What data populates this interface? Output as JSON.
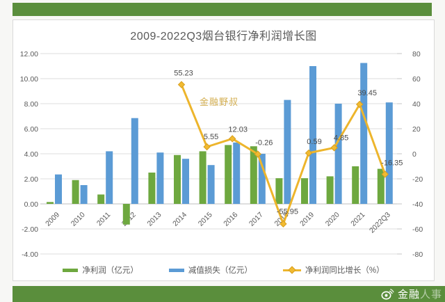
{
  "banners": {
    "color": "#5a8e3c",
    "bottom_watermark": {
      "brand_part1": "金融",
      "brand_part2": "人事"
    }
  },
  "card": {
    "inner_watermark": "金融野叔"
  },
  "chart_data": {
    "type": "combo-bar-line",
    "title": "2009-2022Q3烟台银行净利润增长图",
    "categories": [
      "2009",
      "2010",
      "2011",
      "2012",
      "2013",
      "2014",
      "2015",
      "2016",
      "2017",
      "2018",
      "2019",
      "2020",
      "2021",
      "2022Q3"
    ],
    "series": [
      {
        "name": "净利润（亿元）",
        "type": "bar",
        "axis": "left",
        "color": "#6ea83f",
        "values": [
          0.15,
          1.9,
          0.75,
          -1.65,
          2.5,
          3.9,
          4.2,
          4.7,
          4.6,
          2.05,
          2.05,
          2.2,
          3.0,
          2.8
        ]
      },
      {
        "name": "减值损失（亿元）",
        "type": "bar",
        "axis": "left",
        "color": "#5b9bd5",
        "values": [
          2.35,
          1.5,
          4.2,
          6.85,
          4.1,
          3.6,
          3.1,
          4.9,
          4.0,
          8.3,
          11.0,
          8.0,
          11.25,
          8.1
        ]
      },
      {
        "name": "净利润同比增长（%）",
        "type": "line",
        "axis": "right",
        "color": "#edb52c",
        "marker_fill": "#f1ba31",
        "marker_stroke": "#d89f1e",
        "values": [
          null,
          null,
          null,
          null,
          null,
          55.23,
          5.55,
          12.03,
          -0.26,
          -55.95,
          0.59,
          4.85,
          39.45,
          -16.35
        ],
        "point_labels": [
          "",
          "",
          "",
          "",
          "",
          "55.23",
          "5.55",
          "12.03",
          "-0.26",
          "-55.95",
          "0.59",
          "4.85",
          "39.45",
          "-16.35"
        ]
      }
    ],
    "left_axis": {
      "min": -4,
      "max": 12,
      "step": 2,
      "ticks": [
        "12.00",
        "10.00",
        "8.00",
        "6.00",
        "4.00",
        "2.00",
        "0.00",
        "-2.00",
        "-4.00"
      ]
    },
    "right_axis": {
      "min": -80,
      "max": 80,
      "step": 20,
      "ticks": [
        "80",
        "60",
        "40",
        "20",
        "0",
        "-20",
        "-40",
        "-60",
        "-80"
      ]
    },
    "grid": true,
    "legend_position": "bottom"
  }
}
